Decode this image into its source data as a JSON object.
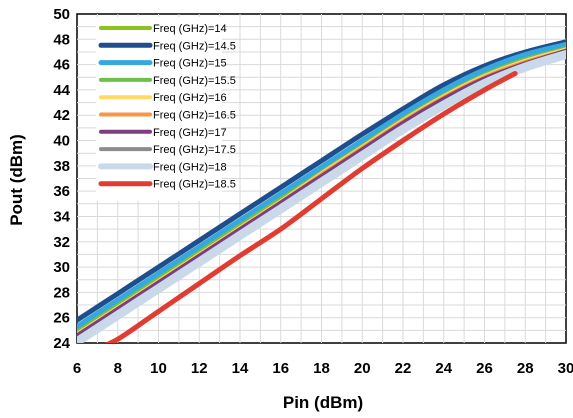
{
  "chart_data": {
    "type": "line",
    "title": "",
    "xlabel": "Pin (dBm)",
    "ylabel": "Pout (dBm)",
    "xlim": [
      6,
      30
    ],
    "ylim": [
      24,
      50
    ],
    "xticks": [
      6,
      8,
      10,
      12,
      14,
      16,
      18,
      20,
      22,
      24,
      26,
      28,
      30
    ],
    "yticks": [
      24,
      26,
      28,
      30,
      32,
      34,
      36,
      38,
      40,
      42,
      44,
      46,
      48,
      50
    ],
    "grid": true,
    "legend_position": "top-left",
    "series": [
      {
        "name": "Freq (GHz)=14",
        "color": "#8DC21F",
        "width": 4,
        "x": [
          6,
          8,
          10,
          12,
          14,
          16,
          18,
          20,
          22,
          24,
          26,
          28,
          30
        ],
        "y": [
          25.0,
          27.1,
          29.2,
          31.3,
          33.4,
          35.5,
          37.7,
          39.8,
          41.9,
          43.8,
          45.4,
          46.6,
          47.5
        ]
      },
      {
        "name": "Freq (GHz)=14.5",
        "color": "#1F4E8C",
        "width": 5,
        "x": [
          6,
          8,
          10,
          12,
          14,
          16,
          18,
          20,
          22,
          24,
          26,
          28,
          30
        ],
        "y": [
          25.8,
          27.9,
          30.0,
          32.1,
          34.2,
          36.3,
          38.4,
          40.5,
          42.5,
          44.4,
          45.9,
          47.0,
          47.8
        ]
      },
      {
        "name": "Freq (GHz)=15",
        "color": "#35A8E0",
        "width": 5,
        "x": [
          6,
          8,
          10,
          12,
          14,
          16,
          18,
          20,
          22,
          24,
          26,
          28,
          30
        ],
        "y": [
          25.3,
          27.4,
          29.5,
          31.6,
          33.7,
          35.8,
          37.9,
          40.0,
          42.1,
          44.0,
          45.6,
          46.8,
          47.6
        ]
      },
      {
        "name": "Freq (GHz)=15.5",
        "color": "#6CC04A",
        "width": 4,
        "x": [
          6,
          8,
          10,
          12,
          14,
          16,
          18,
          20,
          22,
          24,
          26,
          28,
          30
        ],
        "y": [
          24.8,
          26.9,
          29.0,
          31.1,
          33.2,
          35.3,
          37.5,
          39.6,
          41.7,
          43.6,
          45.2,
          46.4,
          47.3
        ]
      },
      {
        "name": "Freq (GHz)=16",
        "color": "#FFD966",
        "width": 4,
        "x": [
          6,
          8,
          10,
          12,
          14,
          16,
          18,
          20,
          22,
          24,
          26,
          28,
          30
        ],
        "y": [
          24.7,
          26.8,
          28.9,
          31.0,
          33.1,
          35.2,
          37.4,
          39.5,
          41.6,
          43.5,
          45.1,
          46.3,
          47.2
        ]
      },
      {
        "name": "Freq (GHz)=16.5",
        "color": "#F79646",
        "width": 4,
        "x": [
          6,
          8,
          10,
          12,
          14,
          16,
          18,
          20,
          22,
          24,
          26,
          28,
          30
        ],
        "y": [
          24.6,
          26.7,
          28.8,
          30.9,
          33.0,
          35.1,
          37.3,
          39.4,
          41.5,
          43.4,
          45.0,
          46.2,
          47.1
        ]
      },
      {
        "name": "Freq (GHz)=17",
        "color": "#7B3F7F",
        "width": 4,
        "x": [
          6,
          8,
          10,
          12,
          14,
          16,
          18,
          20,
          22,
          24,
          26,
          28,
          30
        ],
        "y": [
          24.6,
          26.7,
          28.8,
          30.9,
          33.0,
          35.1,
          37.2,
          39.3,
          41.4,
          43.3,
          44.9,
          46.1,
          47.1
        ]
      },
      {
        "name": "Freq (GHz)=17.5",
        "color": "#8C8C8C",
        "width": 4,
        "x": [
          6,
          8,
          10,
          12,
          14,
          16,
          18,
          20,
          22,
          24,
          26,
          28,
          30
        ],
        "y": [
          24.3,
          26.4,
          28.5,
          30.6,
          32.7,
          34.8,
          36.9,
          39.0,
          41.1,
          43.0,
          44.7,
          46.0,
          47.0
        ]
      },
      {
        "name": "Freq (GHz)=18",
        "color": "#C9D9EA",
        "width": 9,
        "x": [
          6,
          8,
          10,
          12,
          14,
          16,
          18,
          20,
          22,
          24,
          26,
          28,
          30
        ],
        "y": [
          24.1,
          26.2,
          28.3,
          30.4,
          32.5,
          34.6,
          36.7,
          38.8,
          40.9,
          42.8,
          44.5,
          45.8,
          46.8
        ]
      },
      {
        "name": "Freq (GHz)=18.5",
        "color": "#E03C31",
        "width": 5,
        "x": [
          6.5,
          8,
          10,
          12,
          14,
          16,
          18,
          20,
          22,
          24,
          26,
          27.5
        ],
        "y": [
          23.2,
          24.3,
          26.5,
          28.7,
          30.9,
          33.0,
          35.4,
          37.8,
          40.0,
          42.1,
          44.0,
          45.3
        ]
      }
    ]
  }
}
